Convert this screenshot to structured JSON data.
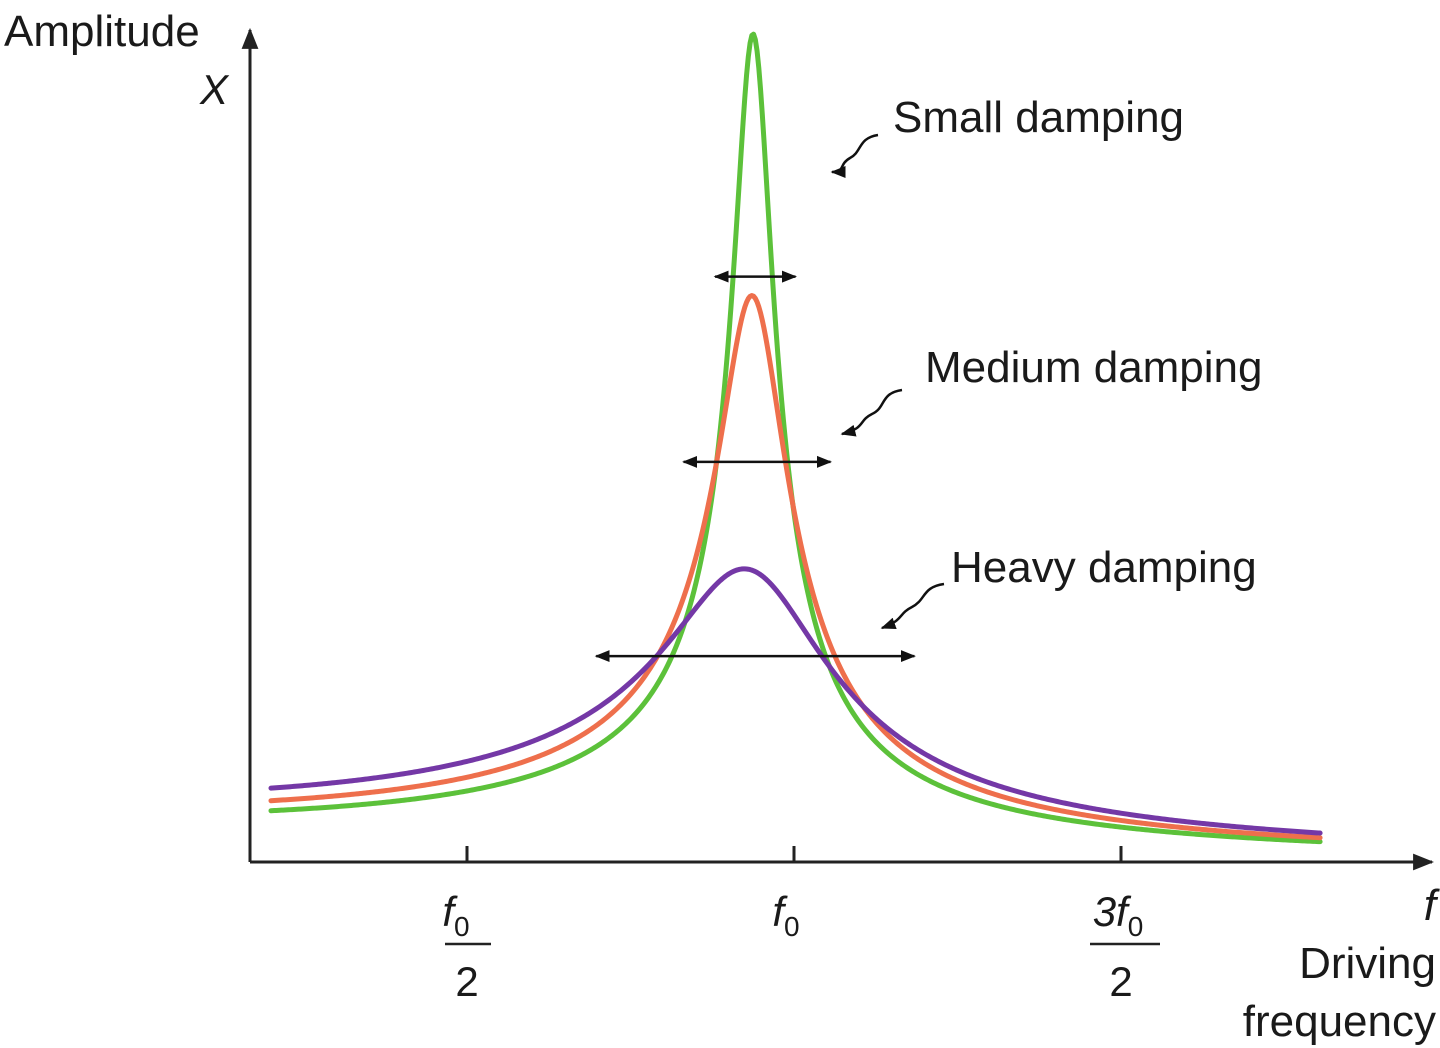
{
  "chart_data": {
    "type": "line",
    "xlabel": {
      "symbol": "f",
      "line1": "Driving",
      "line2": "frequency"
    },
    "ylabel": {
      "line1": "Amplitude",
      "symbol": "X"
    },
    "xlim": [
      0.28,
      1.97
    ],
    "ylim": [
      0,
      1.0
    ],
    "x_ticks": [
      {
        "value": 0.5,
        "numerator": "f",
        "numerator_sub": "0",
        "denominator": "2"
      },
      {
        "value": 1.0,
        "main": "f",
        "sub": "0"
      },
      {
        "value": 1.5,
        "numerator": "3f",
        "numerator_sub": "0",
        "denominator": "2"
      }
    ],
    "x_range": [
      0.31,
      1.81
    ],
    "series": [
      {
        "name": "Small damping",
        "color": "#5cc13a",
        "peak_x": 1.0,
        "peak_y": 0.995,
        "damping_ratio": 0.028,
        "half_width_arrow": [
          0.945,
          1.06
        ]
      },
      {
        "name": "Medium damping",
        "color": "#ee6f4c",
        "peak_x": 1.0,
        "peak_y": 0.68,
        "damping_ratio": 0.049,
        "half_width_arrow": [
          0.9,
          1.11
        ]
      },
      {
        "name": "Heavy damping",
        "color": "#7438a6",
        "peak_x": 1.0,
        "peak_y": 0.35,
        "damping_ratio": 0.115,
        "half_width_arrow": [
          0.775,
          1.23
        ]
      }
    ],
    "grid": false,
    "legend": "labels beside curves"
  }
}
